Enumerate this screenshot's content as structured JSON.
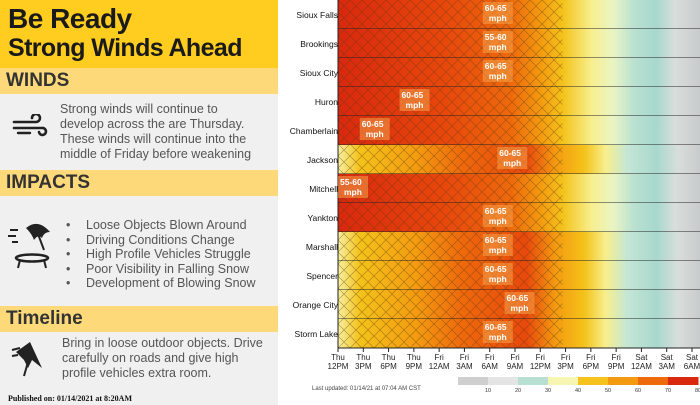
{
  "title": {
    "line1": "Be Ready",
    "line2": "Strong Winds Ahead"
  },
  "winds": {
    "heading": "WINDS",
    "text": [
      "Strong winds will continue to",
      "develop across the are Thursday.",
      "These winds will continue into the",
      "middle of Friday before weakening"
    ],
    "icon": "wind-icon"
  },
  "impacts": {
    "heading": "IMPACTS",
    "items": [
      "Loose Objects Blown Around",
      "Driving Conditions Change",
      "High Profile Vehicles Struggle",
      "Poor Visibility in Falling Snow",
      "Development of Blowing Snow"
    ],
    "icon": "umbrella-trampoline-icon"
  },
  "timeline": {
    "heading": "Timeline",
    "text": [
      "Bring in loose outdoor objects. Drive",
      "carefully on roads and give high",
      "profile vehicles extra room."
    ],
    "icon": "umbrella-broken-icon"
  },
  "chart_data": {
    "type": "heatmap",
    "locations": [
      "Sioux Falls",
      "Brookings",
      "Sioux City",
      "Huron",
      "Chamberlain",
      "Jackson",
      "Mitchell",
      "Yankton",
      "Marshall",
      "Spencer",
      "Orange City",
      "Storm Lake"
    ],
    "peak_labels": [
      "60-65\nmph",
      "55-60\nmph",
      "60-65\nmph",
      "60-65\nmph",
      "60-65\nmph",
      "60-65\nmph",
      "55-60\nmph",
      "60-65\nmph",
      "60-65\nmph",
      "60-65\nmph",
      "60-65\nmph",
      "60-65\nmph"
    ],
    "x_ticks": [
      "Thu\n12PM",
      "Thu\n3PM",
      "Thu\n6PM",
      "Thu\n9PM",
      "Fri\n12AM",
      "Fri\n3AM",
      "Fri\n6AM",
      "Fri\n9AM",
      "Fri\n12PM",
      "Fri\n3PM",
      "Fri\n6PM",
      "Fri\n9PM",
      "Sat\n12AM",
      "Sat\n3AM",
      "Sat\n6AM"
    ],
    "colorbar": {
      "ticks": [
        "10",
        "20",
        "30",
        "40",
        "50",
        "60",
        "70",
        "80"
      ],
      "colors": [
        "#cfcfcf",
        "#e4e4e4",
        "#b8e0d2",
        "#f6f5b2",
        "#f4c21a",
        "#f39a10",
        "#ee6a0c",
        "#d9280e"
      ]
    },
    "hatch_note": "crosshatch",
    "updated": "Last updated: 01/14/21 at 07:04 AM CST"
  },
  "published": "Published on: 01/14/2021 at 8:20AM"
}
